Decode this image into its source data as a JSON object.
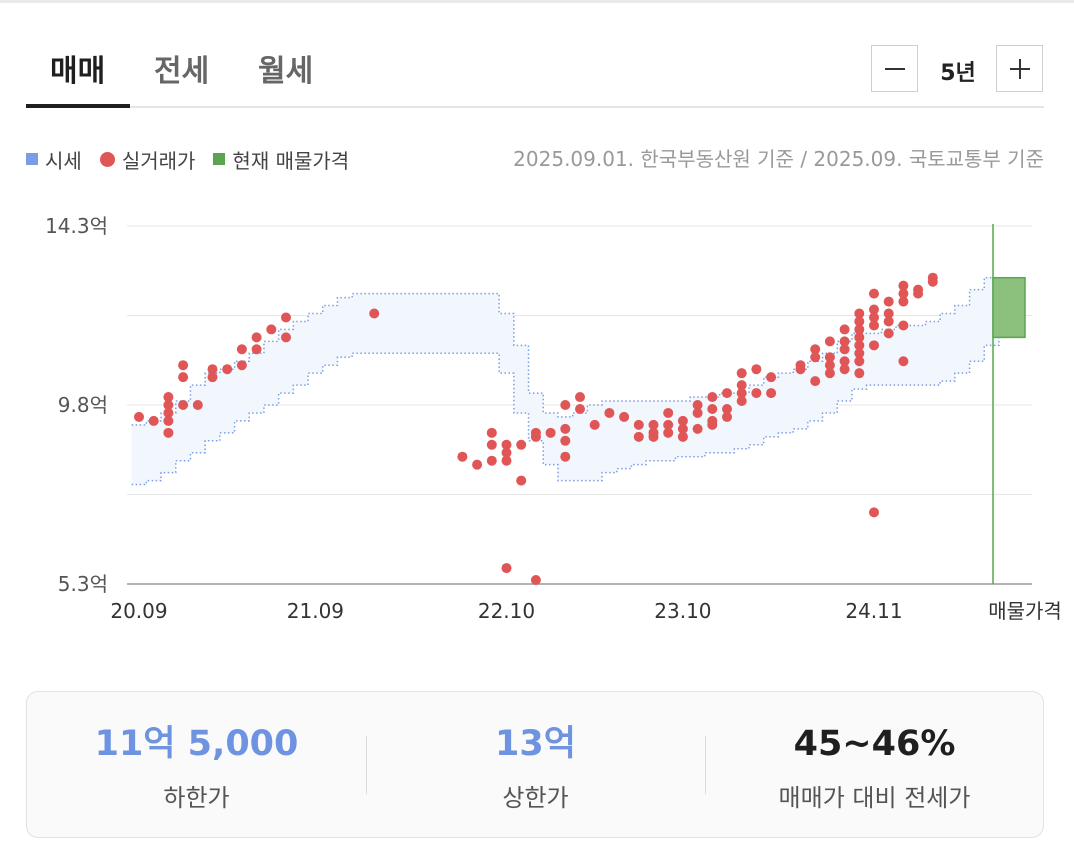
{
  "tabs": [
    {
      "label": "매매",
      "active": true
    },
    {
      "label": "전세",
      "active": false
    },
    {
      "label": "월세",
      "active": false
    }
  ],
  "period": {
    "label": "5년",
    "minus_icon": "minus-icon",
    "plus_icon": "plus-icon"
  },
  "legend": [
    {
      "label": "시세",
      "color": "#7a9ee6",
      "shape": "square"
    },
    {
      "label": "실거래가",
      "color": "#e05555",
      "shape": "circle"
    },
    {
      "label": "현재 매물가격",
      "color": "#5aa64f",
      "shape": "square"
    }
  ],
  "source_note": "2025.09.01. 한국부동산원 기준 / 2025.09. 국토교통부 기준",
  "chart_data": {
    "type": "scatter",
    "title": "",
    "xlabel": "",
    "ylabel": "",
    "x_range": [
      "2020-09",
      "2025-09"
    ],
    "y_unit": "억",
    "ylim": [
      5.3,
      14.3
    ],
    "y_ticks": [
      "5.3억",
      "9.8억",
      "14.3억"
    ],
    "x_ticks": [
      "20.09",
      "21.09",
      "22.10",
      "23.10",
      "24.11"
    ],
    "extra_x_label": "매물가격",
    "grid": true,
    "series": [
      {
        "name": "시세",
        "kind": "band",
        "color": "#7a9ee6",
        "x": [
          "2020-09",
          "2020-10",
          "2020-11",
          "2020-12",
          "2021-01",
          "2021-02",
          "2021-03",
          "2021-04",
          "2021-05",
          "2021-06",
          "2021-07",
          "2021-08",
          "2021-09",
          "2021-10",
          "2021-11",
          "2021-12",
          "2022-01",
          "2022-02",
          "2022-03",
          "2022-04",
          "2022-05",
          "2022-06",
          "2022-07",
          "2022-08",
          "2022-09",
          "2022-10",
          "2022-11",
          "2022-12",
          "2023-01",
          "2023-02",
          "2023-03",
          "2023-04",
          "2023-05",
          "2023-06",
          "2023-07",
          "2023-08",
          "2023-09",
          "2023-10",
          "2023-11",
          "2023-12",
          "2024-01",
          "2024-02",
          "2024-03",
          "2024-04",
          "2024-05",
          "2024-06",
          "2024-07",
          "2024-08",
          "2024-09",
          "2024-10",
          "2024-11",
          "2024-12",
          "2025-01",
          "2025-02",
          "2025-03",
          "2025-04",
          "2025-05",
          "2025-06",
          "2025-07",
          "2025-08"
        ],
        "low": [
          7.8,
          7.9,
          8.1,
          8.4,
          8.6,
          8.9,
          9.1,
          9.4,
          9.6,
          9.8,
          10.1,
          10.3,
          10.6,
          10.8,
          11.0,
          11.1,
          11.1,
          11.1,
          11.1,
          11.1,
          11.1,
          11.1,
          11.1,
          11.1,
          11.1,
          10.6,
          9.6,
          8.9,
          8.3,
          7.9,
          7.9,
          7.9,
          8.1,
          8.2,
          8.3,
          8.4,
          8.4,
          8.5,
          8.5,
          8.6,
          8.6,
          8.7,
          8.8,
          9.0,
          9.1,
          9.2,
          9.4,
          9.6,
          9.9,
          10.2,
          10.3,
          10.3,
          10.3,
          10.3,
          10.3,
          10.4,
          10.6,
          10.9,
          11.3,
          11.5
        ],
        "high": [
          9.3,
          9.4,
          9.6,
          9.9,
          10.3,
          10.6,
          10.7,
          10.9,
          11.1,
          11.4,
          11.7,
          11.9,
          12.1,
          12.3,
          12.5,
          12.6,
          12.6,
          12.6,
          12.6,
          12.6,
          12.6,
          12.6,
          12.6,
          12.6,
          12.6,
          12.1,
          11.3,
          10.1,
          9.6,
          9.5,
          9.6,
          9.8,
          9.9,
          9.9,
          9.9,
          9.9,
          9.9,
          9.9,
          10.0,
          10.0,
          10.1,
          10.1,
          10.3,
          10.5,
          10.6,
          10.7,
          10.9,
          11.1,
          11.4,
          11.6,
          11.6,
          11.7,
          11.8,
          11.8,
          11.9,
          12.1,
          12.3,
          12.7,
          13.0,
          13.0
        ]
      },
      {
        "name": "실거래가",
        "kind": "points",
        "color": "#e05555",
        "points": [
          [
            "2020-09",
            9.5
          ],
          [
            "2020-10",
            9.4
          ],
          [
            "2020-11",
            10.0
          ],
          [
            "2020-11",
            9.8
          ],
          [
            "2020-11",
            9.6
          ],
          [
            "2020-11",
            9.4
          ],
          [
            "2020-11",
            9.1
          ],
          [
            "2020-12",
            10.8
          ],
          [
            "2020-12",
            10.5
          ],
          [
            "2020-12",
            9.8
          ],
          [
            "2021-01",
            9.8
          ],
          [
            "2021-02",
            10.5
          ],
          [
            "2021-02",
            10.7
          ],
          [
            "2021-03",
            10.7
          ],
          [
            "2021-04",
            11.2
          ],
          [
            "2021-04",
            10.8
          ],
          [
            "2021-05",
            11.2
          ],
          [
            "2021-05",
            11.5
          ],
          [
            "2021-06",
            11.7
          ],
          [
            "2021-07",
            11.5
          ],
          [
            "2021-07",
            12.0
          ],
          [
            "2022-01",
            12.1
          ],
          [
            "2022-07",
            8.5
          ],
          [
            "2022-08",
            8.3
          ],
          [
            "2022-09",
            9.1
          ],
          [
            "2022-09",
            8.8
          ],
          [
            "2022-09",
            8.4
          ],
          [
            "2022-10",
            8.8
          ],
          [
            "2022-10",
            8.6
          ],
          [
            "2022-10",
            8.4
          ],
          [
            "2022-10",
            5.7
          ],
          [
            "2022-11",
            8.8
          ],
          [
            "2022-11",
            7.9
          ],
          [
            "2022-12",
            9.1
          ],
          [
            "2022-12",
            9.0
          ],
          [
            "2022-12",
            5.4
          ],
          [
            "2023-01",
            9.1
          ],
          [
            "2023-02",
            9.8
          ],
          [
            "2023-02",
            9.2
          ],
          [
            "2023-02",
            8.9
          ],
          [
            "2023-02",
            8.5
          ],
          [
            "2023-03",
            10.0
          ],
          [
            "2023-03",
            9.7
          ],
          [
            "2023-04",
            9.3
          ],
          [
            "2023-05",
            9.6
          ],
          [
            "2023-06",
            9.5
          ],
          [
            "2023-07",
            9.3
          ],
          [
            "2023-07",
            9.0
          ],
          [
            "2023-08",
            9.3
          ],
          [
            "2023-08",
            9.1
          ],
          [
            "2023-08",
            9.0
          ],
          [
            "2023-09",
            9.6
          ],
          [
            "2023-09",
            9.3
          ],
          [
            "2023-09",
            9.1
          ],
          [
            "2023-10",
            9.4
          ],
          [
            "2023-10",
            9.2
          ],
          [
            "2023-10",
            9.0
          ],
          [
            "2023-11",
            9.8
          ],
          [
            "2023-11",
            9.6
          ],
          [
            "2023-11",
            9.2
          ],
          [
            "2023-12",
            10.0
          ],
          [
            "2023-12",
            9.7
          ],
          [
            "2023-12",
            9.4
          ],
          [
            "2023-12",
            9.3
          ],
          [
            "2024-01",
            10.1
          ],
          [
            "2024-01",
            9.7
          ],
          [
            "2024-01",
            9.5
          ],
          [
            "2024-02",
            10.6
          ],
          [
            "2024-02",
            10.3
          ],
          [
            "2024-02",
            10.1
          ],
          [
            "2024-02",
            9.9
          ],
          [
            "2024-03",
            10.7
          ],
          [
            "2024-03",
            10.1
          ],
          [
            "2024-04",
            10.5
          ],
          [
            "2024-04",
            10.1
          ],
          [
            "2024-06",
            10.7
          ],
          [
            "2024-06",
            10.8
          ],
          [
            "2024-07",
            11.2
          ],
          [
            "2024-07",
            11.0
          ],
          [
            "2024-07",
            10.4
          ],
          [
            "2024-08",
            11.4
          ],
          [
            "2024-08",
            11.0
          ],
          [
            "2024-08",
            10.8
          ],
          [
            "2024-08",
            10.6
          ],
          [
            "2024-09",
            11.7
          ],
          [
            "2024-09",
            11.4
          ],
          [
            "2024-09",
            11.2
          ],
          [
            "2024-09",
            10.9
          ],
          [
            "2024-09",
            10.7
          ],
          [
            "2024-10",
            12.1
          ],
          [
            "2024-10",
            11.9
          ],
          [
            "2024-10",
            11.7
          ],
          [
            "2024-10",
            11.5
          ],
          [
            "2024-10",
            11.3
          ],
          [
            "2024-10",
            11.1
          ],
          [
            "2024-10",
            10.9
          ],
          [
            "2024-10",
            10.6
          ],
          [
            "2024-11",
            12.6
          ],
          [
            "2024-11",
            12.2
          ],
          [
            "2024-11",
            12.0
          ],
          [
            "2024-11",
            11.8
          ],
          [
            "2024-11",
            11.3
          ],
          [
            "2024-11",
            7.1
          ],
          [
            "2024-12",
            12.4
          ],
          [
            "2024-12",
            12.1
          ],
          [
            "2024-12",
            11.9
          ],
          [
            "2024-12",
            11.6
          ],
          [
            "2025-01",
            12.8
          ],
          [
            "2025-01",
            12.6
          ],
          [
            "2025-01",
            12.4
          ],
          [
            "2025-01",
            11.8
          ],
          [
            "2025-01",
            10.9
          ],
          [
            "2025-02",
            12.7
          ],
          [
            "2025-02",
            12.6
          ],
          [
            "2025-03",
            12.9
          ],
          [
            "2025-03",
            13.0
          ]
        ]
      },
      {
        "name": "현재 매물가격",
        "kind": "range",
        "color": "#5aa64f",
        "low": 11.5,
        "high": 13.0
      }
    ]
  },
  "summary": [
    {
      "value": "11억 5,000",
      "label": "하한가",
      "color": "#6e93e0"
    },
    {
      "value": "13억",
      "label": "상한가",
      "color": "#6e93e0"
    },
    {
      "value": "45~46%",
      "label": "매매가 대비 전세가",
      "color": "#1f1f1f"
    }
  ]
}
